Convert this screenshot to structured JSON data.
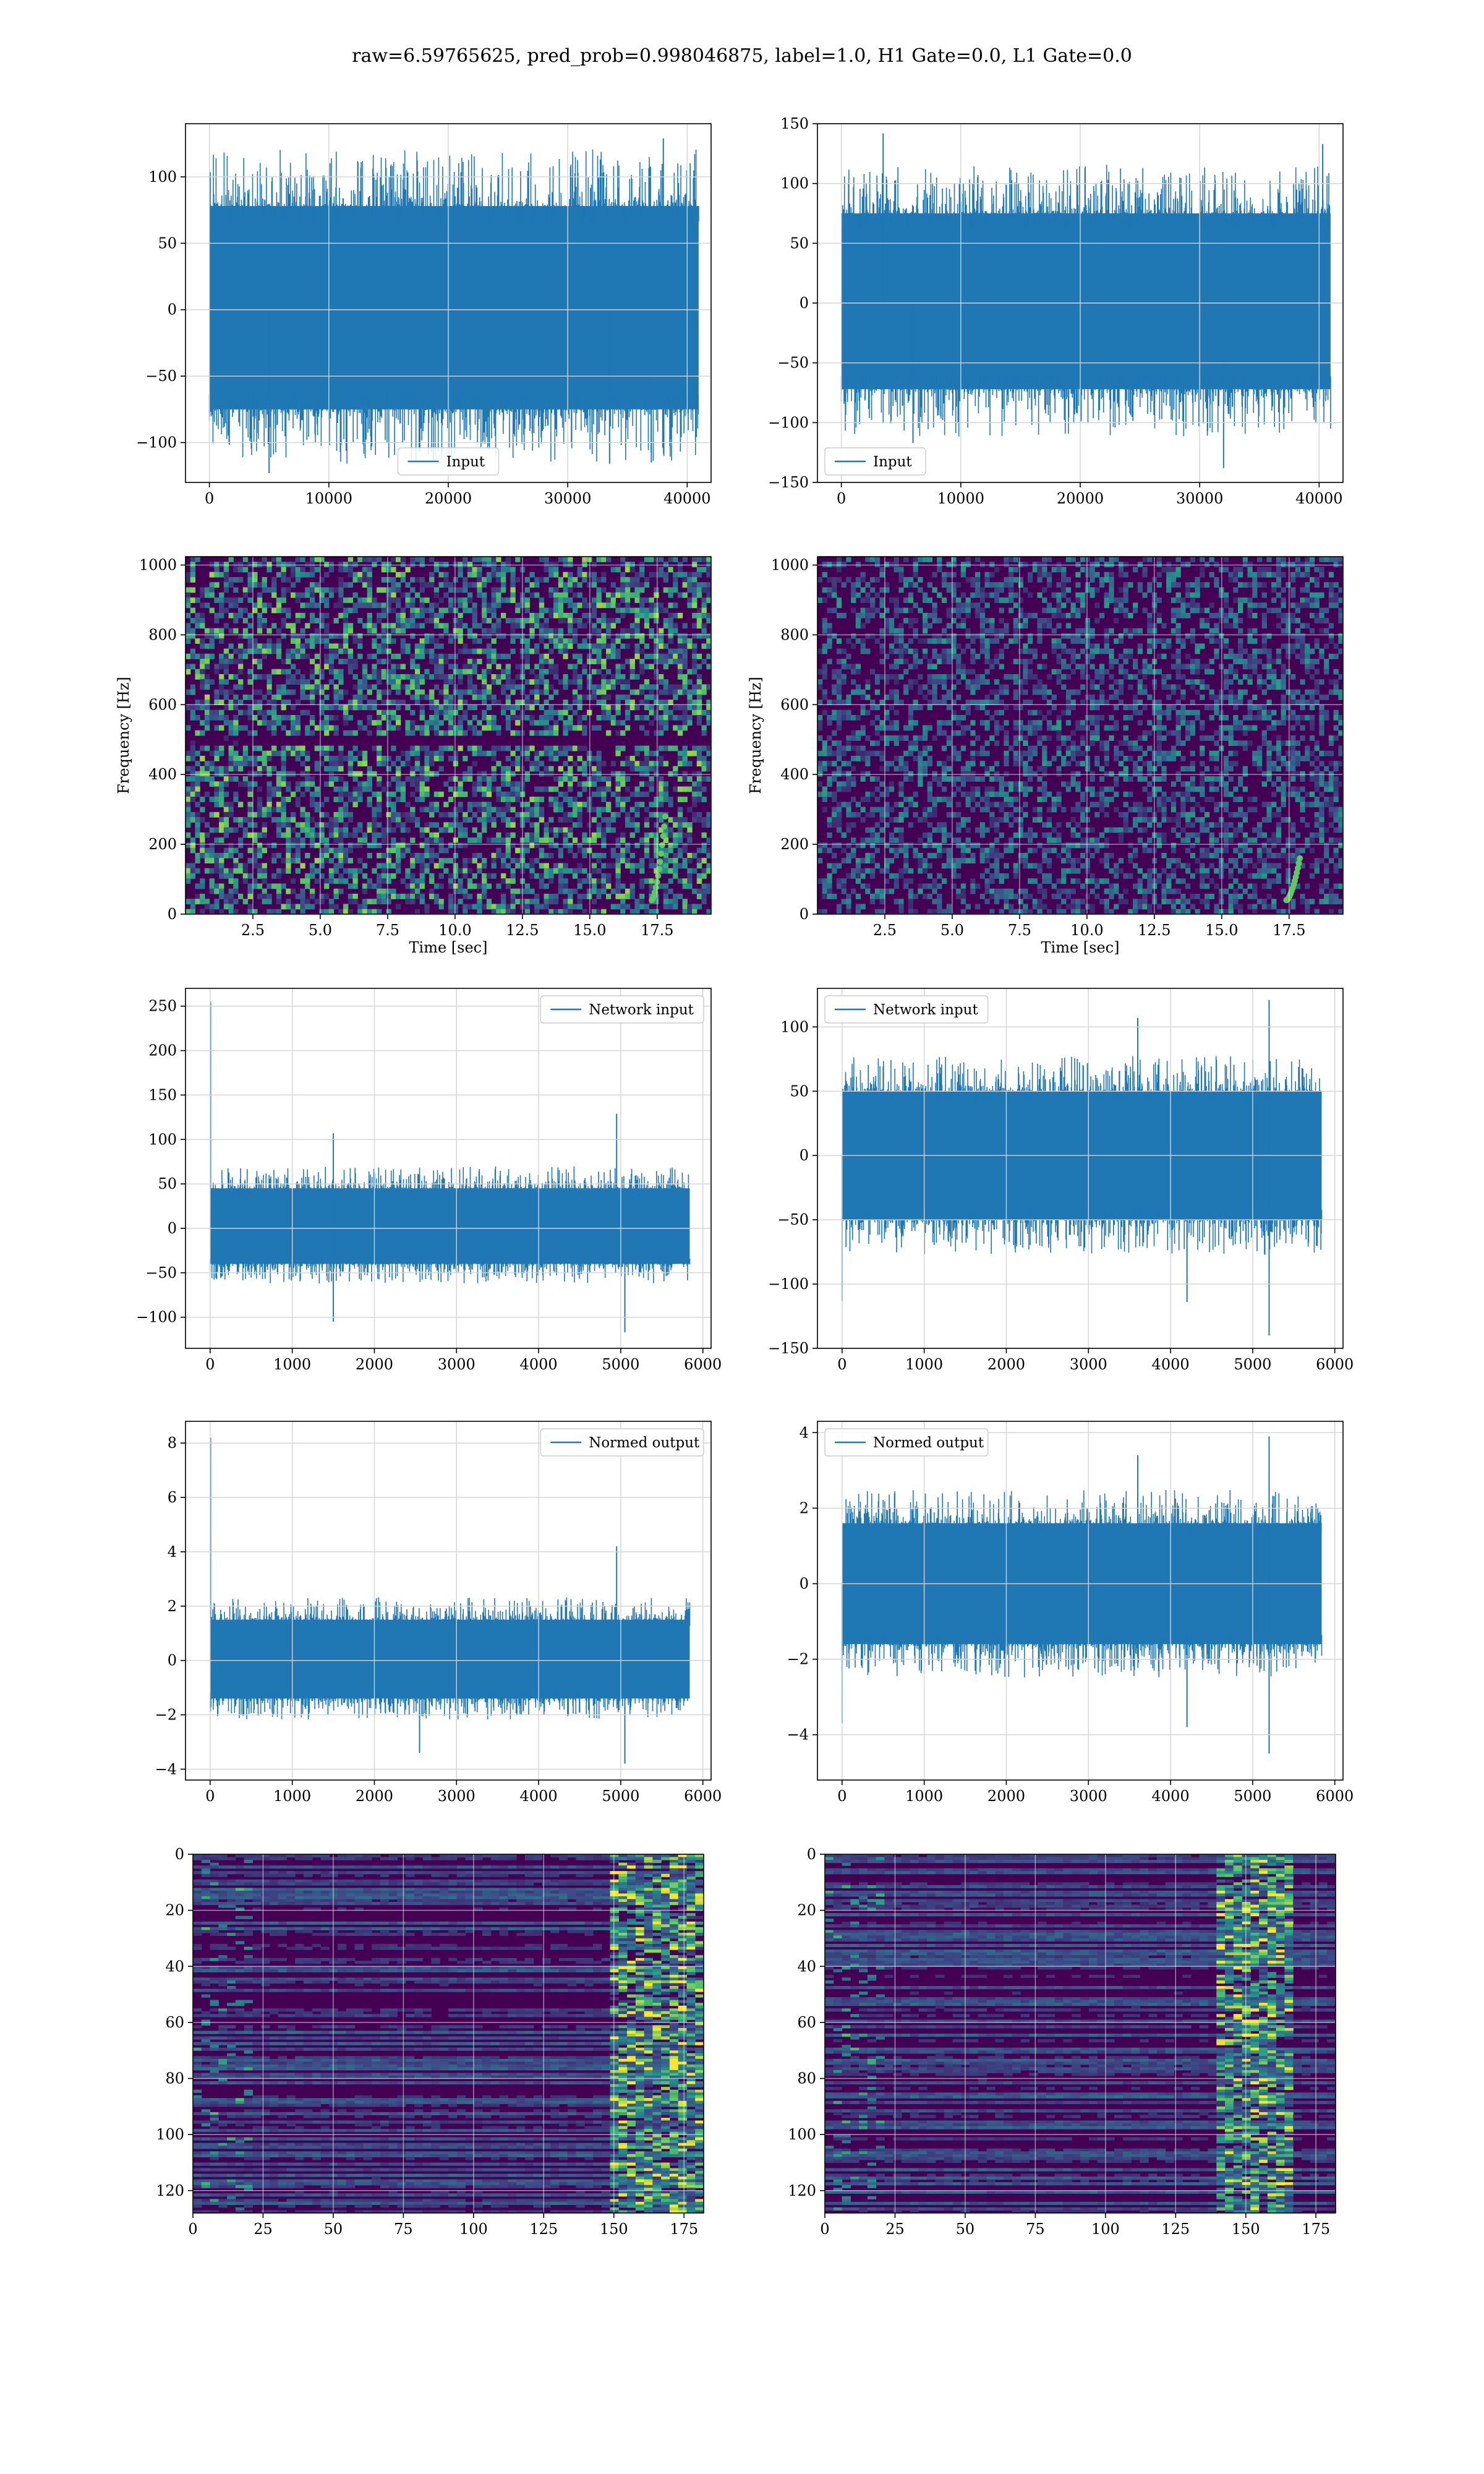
{
  "figure": {
    "suptitle": "raw=6.59765625, pred_prob=0.998046875, label=1.0, H1 Gate=0.0, L1 Gate=0.0"
  },
  "colors": {
    "line": "#1f77b4",
    "grid": "#d3d3d3",
    "viridis": [
      "#440154",
      "#3b528b",
      "#21918c",
      "#5ec962",
      "#fde725"
    ]
  },
  "chart_data": [
    {
      "id": "h1-input",
      "type": "line",
      "xlim": [
        -2000,
        42000
      ],
      "ylim": [
        -130,
        140
      ],
      "xticks": [
        0,
        10000,
        20000,
        30000,
        40000
      ],
      "yticks": [
        -100,
        -50,
        0,
        50,
        100
      ],
      "legend": "lower-center",
      "grid": true,
      "series": [
        {
          "name": "Input",
          "x_range": [
            0,
            40959
          ],
          "envelope": [
            -75,
            78
          ],
          "peaks": [
            [
              38000,
              129
            ],
            [
              5000,
              -123
            ],
            [
              33500,
              -116
            ],
            [
              37000,
              -115
            ]
          ]
        }
      ]
    },
    {
      "id": "l1-input",
      "type": "line",
      "xlim": [
        -2000,
        42000
      ],
      "ylim": [
        -150,
        150
      ],
      "xticks": [
        0,
        10000,
        20000,
        30000,
        40000
      ],
      "yticks": [
        -150,
        -100,
        -50,
        0,
        50,
        100,
        150
      ],
      "legend": "lower-left",
      "grid": true,
      "series": [
        {
          "name": "Input",
          "x_range": [
            0,
            40959
          ],
          "envelope": [
            -72,
            75
          ],
          "peaks": [
            [
              3500,
              142
            ],
            [
              40300,
              133
            ],
            [
              32000,
              -138
            ],
            [
              6000,
              -117
            ]
          ]
        }
      ]
    },
    {
      "id": "h1-spectrogram",
      "type": "heatmap",
      "xlim": [
        0,
        19.5
      ],
      "ylim": [
        0,
        1024
      ],
      "xticks": [
        2.5,
        5.0,
        7.5,
        10.0,
        12.5,
        15.0,
        17.5
      ],
      "yticks": [
        0,
        200,
        400,
        600,
        800,
        1000
      ],
      "xlabel": "Time [sec]",
      "ylabel": "Frequency [Hz]",
      "grid": true,
      "colormap": "viridis",
      "features": {
        "dark_band_hz": 500,
        "chirp": {
          "t": [
            17.3,
            17.8
          ],
          "f": [
            40,
            280
          ]
        }
      }
    },
    {
      "id": "l1-spectrogram",
      "type": "heatmap",
      "xlim": [
        0,
        19.5
      ],
      "ylim": [
        0,
        1024
      ],
      "xticks": [
        2.5,
        5.0,
        7.5,
        10.0,
        12.5,
        15.0,
        17.5
      ],
      "yticks": [
        0,
        200,
        400,
        600,
        800,
        1000
      ],
      "xlabel": "Time [sec]",
      "ylabel": "Frequency [Hz]",
      "grid": true,
      "colormap": "viridis",
      "features": {
        "chirp": {
          "t": [
            17.4,
            17.9
          ],
          "f": [
            40,
            160
          ]
        }
      }
    },
    {
      "id": "h1-network-input",
      "type": "line",
      "xlim": [
        -300,
        6100
      ],
      "ylim": [
        -135,
        270
      ],
      "xticks": [
        0,
        1000,
        2000,
        3000,
        4000,
        5000,
        6000
      ],
      "yticks": [
        -100,
        -50,
        0,
        50,
        100,
        150,
        200,
        250
      ],
      "legend": "upper-right",
      "grid": true,
      "series": [
        {
          "name": "Network input",
          "x_range": [
            0,
            5840
          ],
          "envelope": [
            -40,
            45
          ],
          "peaks": [
            [
              5,
              255
            ],
            [
              1500,
              107
            ],
            [
              4950,
              129
            ],
            [
              5050,
              -117
            ],
            [
              1500,
              -105
            ]
          ]
        }
      ]
    },
    {
      "id": "l1-network-input",
      "type": "line",
      "xlim": [
        -300,
        6100
      ],
      "ylim": [
        -150,
        130
      ],
      "xticks": [
        0,
        1000,
        2000,
        3000,
        4000,
        5000,
        6000
      ],
      "yticks": [
        -150,
        -100,
        -50,
        0,
        50,
        100
      ],
      "legend": "upper-left",
      "grid": true,
      "series": [
        {
          "name": "Network input",
          "x_range": [
            0,
            5840
          ],
          "envelope": [
            -50,
            50
          ],
          "peaks": [
            [
              5200,
              121
            ],
            [
              3600,
              107
            ],
            [
              5200,
              -140
            ],
            [
              4200,
              -114
            ],
            [
              0,
              -113
            ]
          ]
        }
      ]
    },
    {
      "id": "h1-normed-output",
      "type": "line",
      "xlim": [
        -300,
        6100
      ],
      "ylim": [
        -4.4,
        8.8
      ],
      "xticks": [
        0,
        1000,
        2000,
        3000,
        4000,
        5000,
        6000
      ],
      "yticks": [
        -4,
        -2,
        0,
        2,
        4,
        6,
        8
      ],
      "legend": "upper-right",
      "grid": true,
      "series": [
        {
          "name": "Normed output",
          "x_range": [
            0,
            5840
          ],
          "envelope": [
            -1.4,
            1.5
          ],
          "peaks": [
            [
              5,
              8.2
            ],
            [
              4950,
              4.2
            ],
            [
              5050,
              -3.8
            ],
            [
              2550,
              -3.4
            ]
          ]
        }
      ]
    },
    {
      "id": "l1-normed-output",
      "type": "line",
      "xlim": [
        -300,
        6100
      ],
      "ylim": [
        -5.2,
        4.3
      ],
      "xticks": [
        0,
        1000,
        2000,
        3000,
        4000,
        5000,
        6000
      ],
      "yticks": [
        -4,
        -2,
        0,
        2,
        4
      ],
      "legend": "upper-left",
      "grid": true,
      "series": [
        {
          "name": "Normed output",
          "x_range": [
            0,
            5840
          ],
          "envelope": [
            -1.6,
            1.6
          ],
          "peaks": [
            [
              5200,
              3.9
            ],
            [
              3600,
              3.4
            ],
            [
              5200,
              -4.5
            ],
            [
              4200,
              -3.8
            ],
            [
              0,
              -3.7
            ]
          ]
        }
      ]
    },
    {
      "id": "h1-features",
      "type": "heatmap",
      "xlim": [
        0,
        182
      ],
      "ylim": [
        128,
        0
      ],
      "xticks": [
        0,
        25,
        50,
        75,
        100,
        125,
        150,
        175
      ],
      "yticks": [
        0,
        20,
        40,
        60,
        80,
        100,
        120
      ],
      "grid": true,
      "colormap": "viridis",
      "features": {
        "active_columns": [
          150,
          182
        ]
      }
    },
    {
      "id": "l1-features",
      "type": "heatmap",
      "xlim": [
        0,
        182
      ],
      "ylim": [
        128,
        0
      ],
      "xticks": [
        0,
        25,
        50,
        75,
        100,
        125,
        150,
        175
      ],
      "yticks": [
        0,
        20,
        40,
        60,
        80,
        100,
        120
      ],
      "grid": true,
      "colormap": "viridis",
      "features": {
        "active_columns": [
          140,
          168
        ]
      }
    }
  ]
}
